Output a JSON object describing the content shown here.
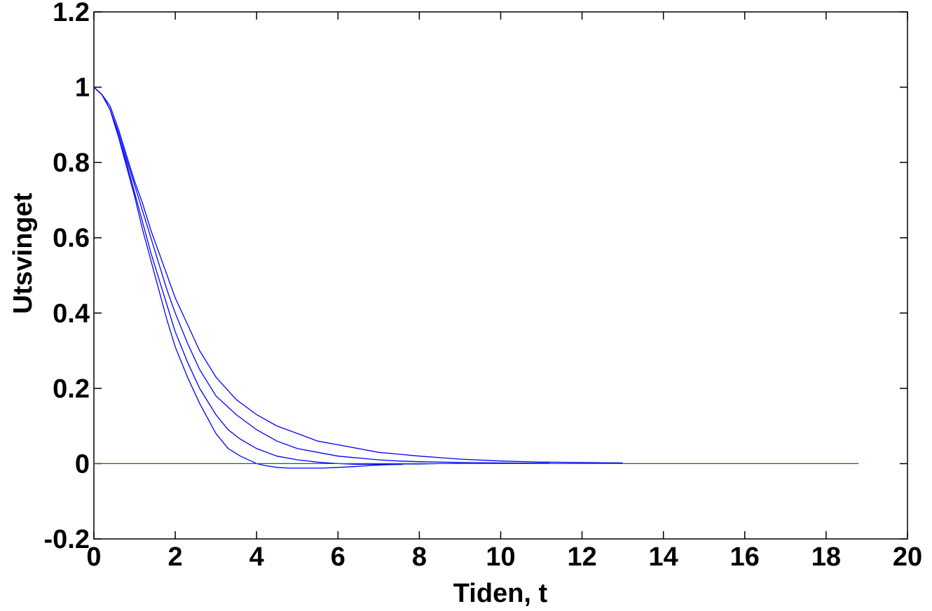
{
  "chart_data": {
    "type": "line",
    "title": "",
    "xlabel": "Tiden, t",
    "ylabel": "Utsvinget",
    "xlim": [
      0,
      20
    ],
    "ylim": [
      -0.2,
      1.2
    ],
    "xticks": [
      0,
      2,
      4,
      6,
      8,
      10,
      12,
      14,
      16,
      18,
      20
    ],
    "yticks": [
      -0.2,
      0,
      0.2,
      0.4,
      0.6,
      0.8,
      1,
      1.2
    ],
    "xtick_labels": [
      "0",
      "2",
      "4",
      "6",
      "8",
      "10",
      "12",
      "14",
      "16",
      "18",
      "20"
    ],
    "ytick_labels": [
      "-0.2",
      "0",
      "0.2",
      "0.4",
      "0.6",
      "0.8",
      "1",
      "1.2"
    ],
    "grid": false,
    "legend": "none",
    "series": [
      {
        "color": "#0000ff",
        "x": [
          0,
          0.2,
          0.4,
          0.6,
          0.8,
          1.0,
          1.2,
          1.4,
          1.6,
          1.8,
          2.0,
          2.3,
          2.6,
          3.0,
          3.3,
          3.6,
          3.9,
          4.0,
          4.2,
          4.5,
          4.8,
          5.2,
          5.6,
          6.0,
          6.4,
          6.8,
          7.2,
          7.6
        ],
        "y": [
          1.0,
          0.98,
          0.94,
          0.87,
          0.79,
          0.71,
          0.62,
          0.54,
          0.46,
          0.38,
          0.31,
          0.23,
          0.16,
          0.08,
          0.04,
          0.02,
          0.005,
          0.0,
          -0.005,
          -0.01,
          -0.012,
          -0.012,
          -0.012,
          -0.01,
          -0.008,
          -0.005,
          -0.003,
          -0.002
        ]
      },
      {
        "color": "#0000ff",
        "x": [
          0,
          0.2,
          0.4,
          0.6,
          0.8,
          1.0,
          1.2,
          1.4,
          1.6,
          1.8,
          2.0,
          2.3,
          2.6,
          3.0,
          3.3,
          3.6,
          4.0,
          4.5,
          5.0,
          5.5,
          6.0,
          6.5,
          7.0,
          7.5,
          8.0,
          8.5,
          9.0
        ],
        "y": [
          1.0,
          0.98,
          0.94,
          0.87,
          0.8,
          0.72,
          0.64,
          0.56,
          0.49,
          0.42,
          0.35,
          0.27,
          0.2,
          0.13,
          0.09,
          0.065,
          0.04,
          0.02,
          0.01,
          0.004,
          0.0,
          -0.002,
          -0.002,
          -0.001,
          -0.001,
          0.0,
          0.0
        ]
      },
      {
        "color": "#0000ff",
        "x": [
          0,
          0.2,
          0.4,
          0.6,
          0.8,
          1.0,
          1.2,
          1.4,
          1.6,
          1.8,
          2.0,
          2.3,
          2.6,
          3.0,
          3.5,
          4.0,
          4.5,
          5.0,
          5.5,
          6.0,
          6.5,
          7.0,
          7.5,
          8.0,
          9.0,
          10.0,
          11.2
        ],
        "y": [
          1.0,
          0.98,
          0.94,
          0.88,
          0.81,
          0.74,
          0.67,
          0.6,
          0.53,
          0.46,
          0.4,
          0.32,
          0.25,
          0.18,
          0.13,
          0.09,
          0.06,
          0.04,
          0.03,
          0.02,
          0.015,
          0.01,
          0.007,
          0.005,
          0.003,
          0.002,
          0.001
        ]
      },
      {
        "color": "#0000ff",
        "x": [
          0,
          0.2,
          0.4,
          0.6,
          0.8,
          1.0,
          1.2,
          1.4,
          1.6,
          1.8,
          2.0,
          2.3,
          2.6,
          3.0,
          3.5,
          4.0,
          4.5,
          5.0,
          5.5,
          6.0,
          6.5,
          7.0,
          7.5,
          8.0,
          9.0,
          10.0,
          11.0,
          12.0,
          13.0
        ],
        "y": [
          1.0,
          0.98,
          0.95,
          0.89,
          0.82,
          0.75,
          0.69,
          0.62,
          0.56,
          0.5,
          0.44,
          0.37,
          0.3,
          0.23,
          0.17,
          0.13,
          0.1,
          0.08,
          0.06,
          0.05,
          0.04,
          0.03,
          0.025,
          0.02,
          0.012,
          0.007,
          0.004,
          0.003,
          0.002
        ]
      },
      {
        "color": "#007f00",
        "x": [
          0,
          18.8
        ],
        "y": [
          0,
          0
        ]
      }
    ]
  }
}
